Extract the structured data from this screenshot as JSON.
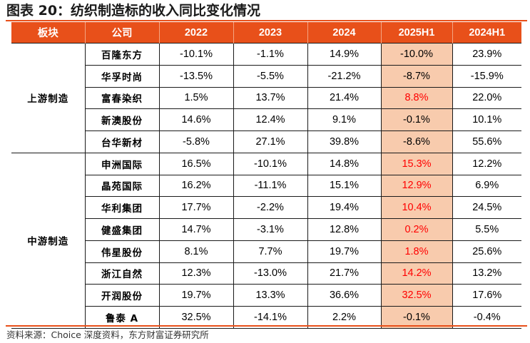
{
  "title": "图表 20：纺织制造标的收入同比变化情况",
  "headers": [
    "板块",
    "公司",
    "2022",
    "2023",
    "2024",
    "2025H1",
    "2024H1"
  ],
  "colors": {
    "accent": "#e8501a",
    "highlight": "#f8cbad",
    "negative_growth_text": "#ff0000"
  },
  "groups": [
    {
      "segment": "上游制造",
      "rows": [
        {
          "company": "百隆东方",
          "v2022": "-10.1%",
          "v2023": "-1.1%",
          "v2024": "14.9%",
          "v2025h1": "-10.0%",
          "v2024h1": "23.9%"
        },
        {
          "company": "华孚时尚",
          "v2022": "-13.5%",
          "v2023": "-5.5%",
          "v2024": "-21.2%",
          "v2025h1": "-8.7%",
          "v2024h1": "-15.9%"
        },
        {
          "company": "富春染织",
          "v2022": "1.5%",
          "v2023": "13.7%",
          "v2024": "21.4%",
          "v2025h1": "8.8%",
          "v2024h1": "22.0%",
          "red": true
        },
        {
          "company": "新澳股份",
          "v2022": "14.6%",
          "v2023": "12.4%",
          "v2024": "9.1%",
          "v2025h1": "-0.1%",
          "v2024h1": "10.1%"
        },
        {
          "company": "台华新材",
          "v2022": "-5.8%",
          "v2023": "27.1%",
          "v2024": "39.8%",
          "v2025h1": "-8.6%",
          "v2024h1": "55.6%"
        }
      ]
    },
    {
      "segment": "中游制造",
      "rows": [
        {
          "company": "申洲国际",
          "v2022": "16.5%",
          "v2023": "-10.1%",
          "v2024": "14.8%",
          "v2025h1": "15.3%",
          "v2024h1": "12.2%",
          "red": true
        },
        {
          "company": "晶苑国际",
          "v2022": "16.2%",
          "v2023": "-11.1%",
          "v2024": "15.1%",
          "v2025h1": "12.9%",
          "v2024h1": "6.9%",
          "red": true
        },
        {
          "company": "华利集团",
          "v2022": "17.7%",
          "v2023": "-2.2%",
          "v2024": "19.4%",
          "v2025h1": "10.4%",
          "v2024h1": "24.5%",
          "red": true
        },
        {
          "company": "健盛集团",
          "v2022": "14.7%",
          "v2023": "-3.1%",
          "v2024": "12.8%",
          "v2025h1": "0.2%",
          "v2024h1": "5.5%",
          "red": true
        },
        {
          "company": "伟星股份",
          "v2022": "8.1%",
          "v2023": "7.7%",
          "v2024": "19.7%",
          "v2025h1": "1.8%",
          "v2024h1": "25.6%",
          "red": true
        },
        {
          "company": "浙江自然",
          "v2022": "12.3%",
          "v2023": "-13.0%",
          "v2024": "21.7%",
          "v2025h1": "14.2%",
          "v2024h1": "13.2%",
          "red": true
        },
        {
          "company": "开润股份",
          "v2022": "19.7%",
          "v2023": "13.3%",
          "v2024": "36.6%",
          "v2025h1": "32.5%",
          "v2024h1": "17.6%",
          "red": true
        },
        {
          "company": "鲁泰 A",
          "v2022": "32.5%",
          "v2023": "-14.1%",
          "v2024": "2.2%",
          "v2025h1": "-0.1%",
          "v2024h1": "-0.4%"
        }
      ]
    }
  ],
  "source": "资料来源：Choice 深度资料，东方财富证券研究所"
}
